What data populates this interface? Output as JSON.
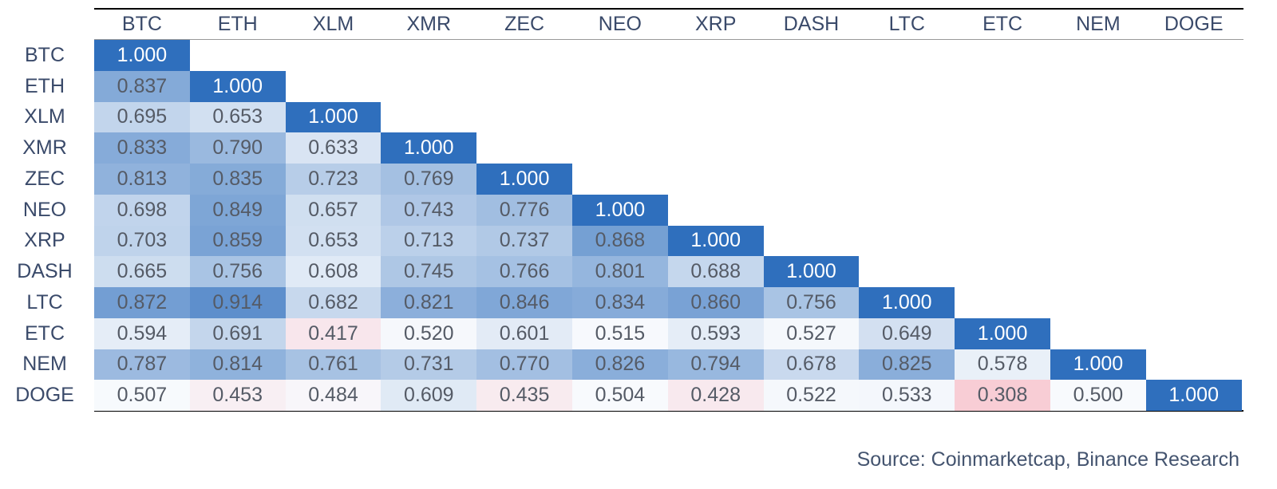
{
  "table": {
    "columns": [
      "BTC",
      "ETH",
      "XLM",
      "XMR",
      "ZEC",
      "NEO",
      "XRP",
      "DASH",
      "LTC",
      "ETC",
      "NEM",
      "DOGE"
    ],
    "rows": [
      {
        "label": "BTC",
        "cells": [
          "1.000"
        ]
      },
      {
        "label": "ETH",
        "cells": [
          "0.837",
          "1.000"
        ]
      },
      {
        "label": "XLM",
        "cells": [
          "0.695",
          "0.653",
          "1.000"
        ]
      },
      {
        "label": "XMR",
        "cells": [
          "0.833",
          "0.790",
          "0.633",
          "1.000"
        ]
      },
      {
        "label": "ZEC",
        "cells": [
          "0.813",
          "0.835",
          "0.723",
          "0.769",
          "1.000"
        ]
      },
      {
        "label": "NEO",
        "cells": [
          "0.698",
          "0.849",
          "0.657",
          "0.743",
          "0.776",
          "1.000"
        ]
      },
      {
        "label": "XRP",
        "cells": [
          "0.703",
          "0.859",
          "0.653",
          "0.713",
          "0.737",
          "0.868",
          "1.000"
        ]
      },
      {
        "label": "DASH",
        "cells": [
          "0.665",
          "0.756",
          "0.608",
          "0.745",
          "0.766",
          "0.801",
          "0.688",
          "1.000"
        ]
      },
      {
        "label": "LTC",
        "cells": [
          "0.872",
          "0.914",
          "0.682",
          "0.821",
          "0.846",
          "0.834",
          "0.860",
          "0.756",
          "1.000"
        ]
      },
      {
        "label": "ETC",
        "cells": [
          "0.594",
          "0.691",
          "0.417",
          "0.520",
          "0.601",
          "0.515",
          "0.593",
          "0.527",
          "0.649",
          "1.000"
        ]
      },
      {
        "label": "NEM",
        "cells": [
          "0.787",
          "0.814",
          "0.761",
          "0.731",
          "0.770",
          "0.826",
          "0.794",
          "0.678",
          "0.825",
          "0.578",
          "1.000"
        ]
      },
      {
        "label": "DOGE",
        "cells": [
          "0.507",
          "0.453",
          "0.484",
          "0.609",
          "0.435",
          "0.504",
          "0.428",
          "0.522",
          "0.533",
          "0.308",
          "0.500",
          "1.000"
        ]
      }
    ]
  },
  "footer": {
    "source": "Source: Coinmarketcap, Binance Research"
  }
}
